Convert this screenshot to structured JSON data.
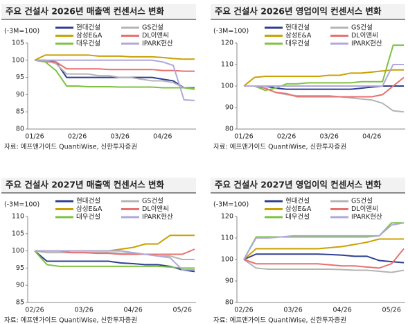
{
  "chart_data": [
    {
      "type": "line",
      "title": "주요 건설사 2026년 매출액 컨센서스 변화",
      "unit": "(-3M=100)",
      "source": "자료: 에프앤가이드 QuantiWise, 신한투자증권",
      "categories": [
        "01/26",
        null,
        null,
        null,
        "02/26",
        null,
        null,
        null,
        "03/26",
        null,
        null,
        null,
        "04/26",
        null,
        null,
        null
      ],
      "ylim": [
        80,
        105
      ],
      "yticks": [
        80,
        85,
        90,
        95,
        100,
        105
      ],
      "series": [
        {
          "name": "현대건설",
          "color": "#2e3f8f",
          "values": [
            100,
            100,
            99.5,
            95,
            95,
            95,
            95,
            95,
            95,
            95,
            95,
            95,
            94.5,
            94,
            92,
            92
          ]
        },
        {
          "name": "GS건설",
          "color": "#b4b4b4",
          "values": [
            100,
            100,
            99,
            96,
            96,
            96,
            95.5,
            95.5,
            95,
            95,
            94.5,
            94,
            94,
            93.5,
            92,
            91.5
          ]
        },
        {
          "name": "삼성E&A",
          "color": "#c9a100",
          "values": [
            100,
            101.5,
            101.5,
            101.5,
            101.5,
            101.5,
            101.2,
            101.2,
            101.2,
            101,
            101,
            101,
            100.8,
            100.5,
            100.3,
            100.3
          ]
        },
        {
          "name": "DL이앤씨",
          "color": "#e87070",
          "values": [
            100,
            99.5,
            99.5,
            97.5,
            97.5,
            97.5,
            97.5,
            97.3,
            97.3,
            97.3,
            97.3,
            97.3,
            97,
            97,
            96.8,
            96.8
          ]
        },
        {
          "name": "대우건설",
          "color": "#7dc242",
          "values": [
            100,
            99.5,
            97,
            92.5,
            92.5,
            92.3,
            92.3,
            92.3,
            92.2,
            92.2,
            92.2,
            92.2,
            92,
            92,
            92,
            91.8
          ]
        },
        {
          "name": "IPARK현산",
          "color": "#b0a8dc",
          "values": [
            100,
            100,
            100,
            100,
            100,
            100,
            100,
            100,
            100,
            100,
            100,
            100,
            99.5,
            98.5,
            88.5,
            88.3
          ]
        }
      ]
    },
    {
      "type": "line",
      "title": "주요 건설사 2026년 영업이익 컨센서스 변화",
      "unit": "(-3M=100)",
      "source": "자료: 에프앤가이드 QuantiWise, 신한투자증권",
      "categories": [
        "01/26",
        null,
        null,
        null,
        "02/26",
        null,
        null,
        null,
        "03/26",
        null,
        null,
        null,
        "04/26",
        null,
        null,
        null
      ],
      "ylim": [
        80,
        120
      ],
      "yticks": [
        80,
        90,
        100,
        110,
        120
      ],
      "series": [
        {
          "name": "현대건설",
          "color": "#2e3f8f",
          "values": [
            100,
            100,
            100,
            99,
            98.5,
            98.5,
            98.5,
            98.5,
            98.5,
            98.5,
            98.5,
            99,
            99.5,
            100,
            100,
            100
          ]
        },
        {
          "name": "GS건설",
          "color": "#b4b4b4",
          "values": [
            100,
            100,
            99,
            97,
            96,
            95.5,
            95.5,
            95.5,
            95.5,
            95,
            94.5,
            94,
            93.5,
            92,
            88.5,
            88
          ]
        },
        {
          "name": "삼성E&A",
          "color": "#c9a100",
          "values": [
            100,
            104,
            104.5,
            104.5,
            104.5,
            104.5,
            104.5,
            104.5,
            105,
            105,
            106,
            106,
            106.5,
            107,
            107.5,
            107.5
          ]
        },
        {
          "name": "DL이앤씨",
          "color": "#e87070",
          "values": [
            100,
            100,
            99,
            97,
            96.5,
            95,
            95,
            95,
            95,
            95,
            95,
            95,
            95,
            96,
            100,
            104
          ]
        },
        {
          "name": "대우건설",
          "color": "#7dc242",
          "values": [
            100,
            100,
            98,
            99,
            101,
            101,
            101.5,
            101.5,
            101.5,
            101.5,
            101.5,
            102,
            102,
            102,
            119,
            119
          ]
        },
        {
          "name": "IPARK현산",
          "color": "#b0a8dc",
          "values": [
            100,
            100,
            100,
            100,
            100,
            100,
            100,
            100,
            100,
            100,
            100,
            100,
            100,
            100,
            110,
            110
          ]
        }
      ]
    },
    {
      "type": "line",
      "title": "주요 건설사 2027년 매출액 컨센서스 변화",
      "unit": "(-3M=100)",
      "source": "자료: 에프앤가이드 QuantiWise, 신한투자증권",
      "categories": [
        "02/26",
        null,
        null,
        null,
        "03/26",
        null,
        null,
        null,
        "04/26",
        null,
        null,
        null,
        "05/26",
        null
      ],
      "ylim": [
        85,
        110
      ],
      "yticks": [
        85,
        90,
        95,
        100,
        105,
        110
      ],
      "series": [
        {
          "name": "현대건설",
          "color": "#2e3f8f",
          "values": [
            100,
            97,
            97,
            97,
            97,
            97,
            97,
            96.5,
            96.3,
            96,
            96,
            95.5,
            94.5,
            94
          ]
        },
        {
          "name": "GS건설",
          "color": "#b4b4b4",
          "values": [
            100,
            99.5,
            99.5,
            99.5,
            99.5,
            99.5,
            99.5,
            99.3,
            99.3,
            99,
            98.5,
            98.5,
            97.5,
            97.5
          ]
        },
        {
          "name": "삼성E&A",
          "color": "#c9a100",
          "values": [
            100,
            100,
            100,
            100,
            100,
            100,
            100,
            100.5,
            101,
            102,
            102,
            104.5,
            104.5,
            104.5
          ]
        },
        {
          "name": "DL이앤씨",
          "color": "#e87070",
          "values": [
            100,
            100,
            100,
            99.5,
            99.5,
            99.3,
            99.3,
            99,
            99,
            99,
            99,
            99,
            99,
            100.5
          ]
        },
        {
          "name": "대우건설",
          "color": "#7dc242",
          "values": [
            100,
            96,
            95.5,
            95.5,
            95.5,
            95.5,
            95.5,
            95.5,
            95.5,
            95.5,
            95.5,
            95.3,
            95,
            95
          ]
        },
        {
          "name": "IPARK현산",
          "color": "#b0a8dc",
          "values": [
            100,
            100,
            100,
            100,
            100,
            100,
            100,
            100,
            99.5,
            99,
            98.5,
            98,
            94.5,
            94.5
          ]
        }
      ]
    },
    {
      "type": "line",
      "title": "주요 건설사 2027년 영업이익 컨센서스 변화",
      "unit": "(-3M=100)",
      "source": "자료: 에프앤가이드 QuantiWise, 신한투자증권",
      "categories": [
        "02/26",
        null,
        null,
        null,
        "03/26",
        null,
        null,
        null,
        "04/26",
        null,
        null,
        null,
        "05/26",
        null
      ],
      "ylim": [
        80,
        120
      ],
      "yticks": [
        80,
        90,
        100,
        110,
        120
      ],
      "series": [
        {
          "name": "현대건설",
          "color": "#2e3f8f",
          "values": [
            100,
            102.5,
            102.5,
            102.5,
            102.5,
            102.5,
            102.5,
            102.3,
            102,
            101.5,
            101.5,
            99.5,
            99,
            98.5
          ]
        },
        {
          "name": "GS건설",
          "color": "#b4b4b4",
          "values": [
            100,
            96,
            95.5,
            95.5,
            95.5,
            95.5,
            95.5,
            95.5,
            95.3,
            95,
            95,
            94.5,
            94,
            95
          ]
        },
        {
          "name": "삼성E&A",
          "color": "#c9a100",
          "values": [
            100,
            105,
            105,
            105,
            105,
            105,
            105,
            105.5,
            106,
            107,
            108,
            109.5,
            109.5,
            109.5
          ]
        },
        {
          "name": "DL이앤씨",
          "color": "#e87070",
          "values": [
            100,
            98,
            98,
            98,
            98,
            98,
            98,
            97.5,
            97,
            97,
            96.5,
            96,
            98,
            105
          ]
        },
        {
          "name": "대우건설",
          "color": "#7dc242",
          "values": [
            100,
            110.5,
            110.5,
            110.5,
            110.5,
            110.5,
            110.5,
            110.5,
            110.5,
            110.5,
            110.5,
            111,
            117,
            117
          ]
        },
        {
          "name": "IPARK현산",
          "color": "#b0a8dc",
          "values": [
            100,
            110,
            110,
            110.5,
            111,
            111,
            111,
            111,
            111,
            111,
            111,
            111,
            116,
            117
          ]
        }
      ]
    }
  ]
}
